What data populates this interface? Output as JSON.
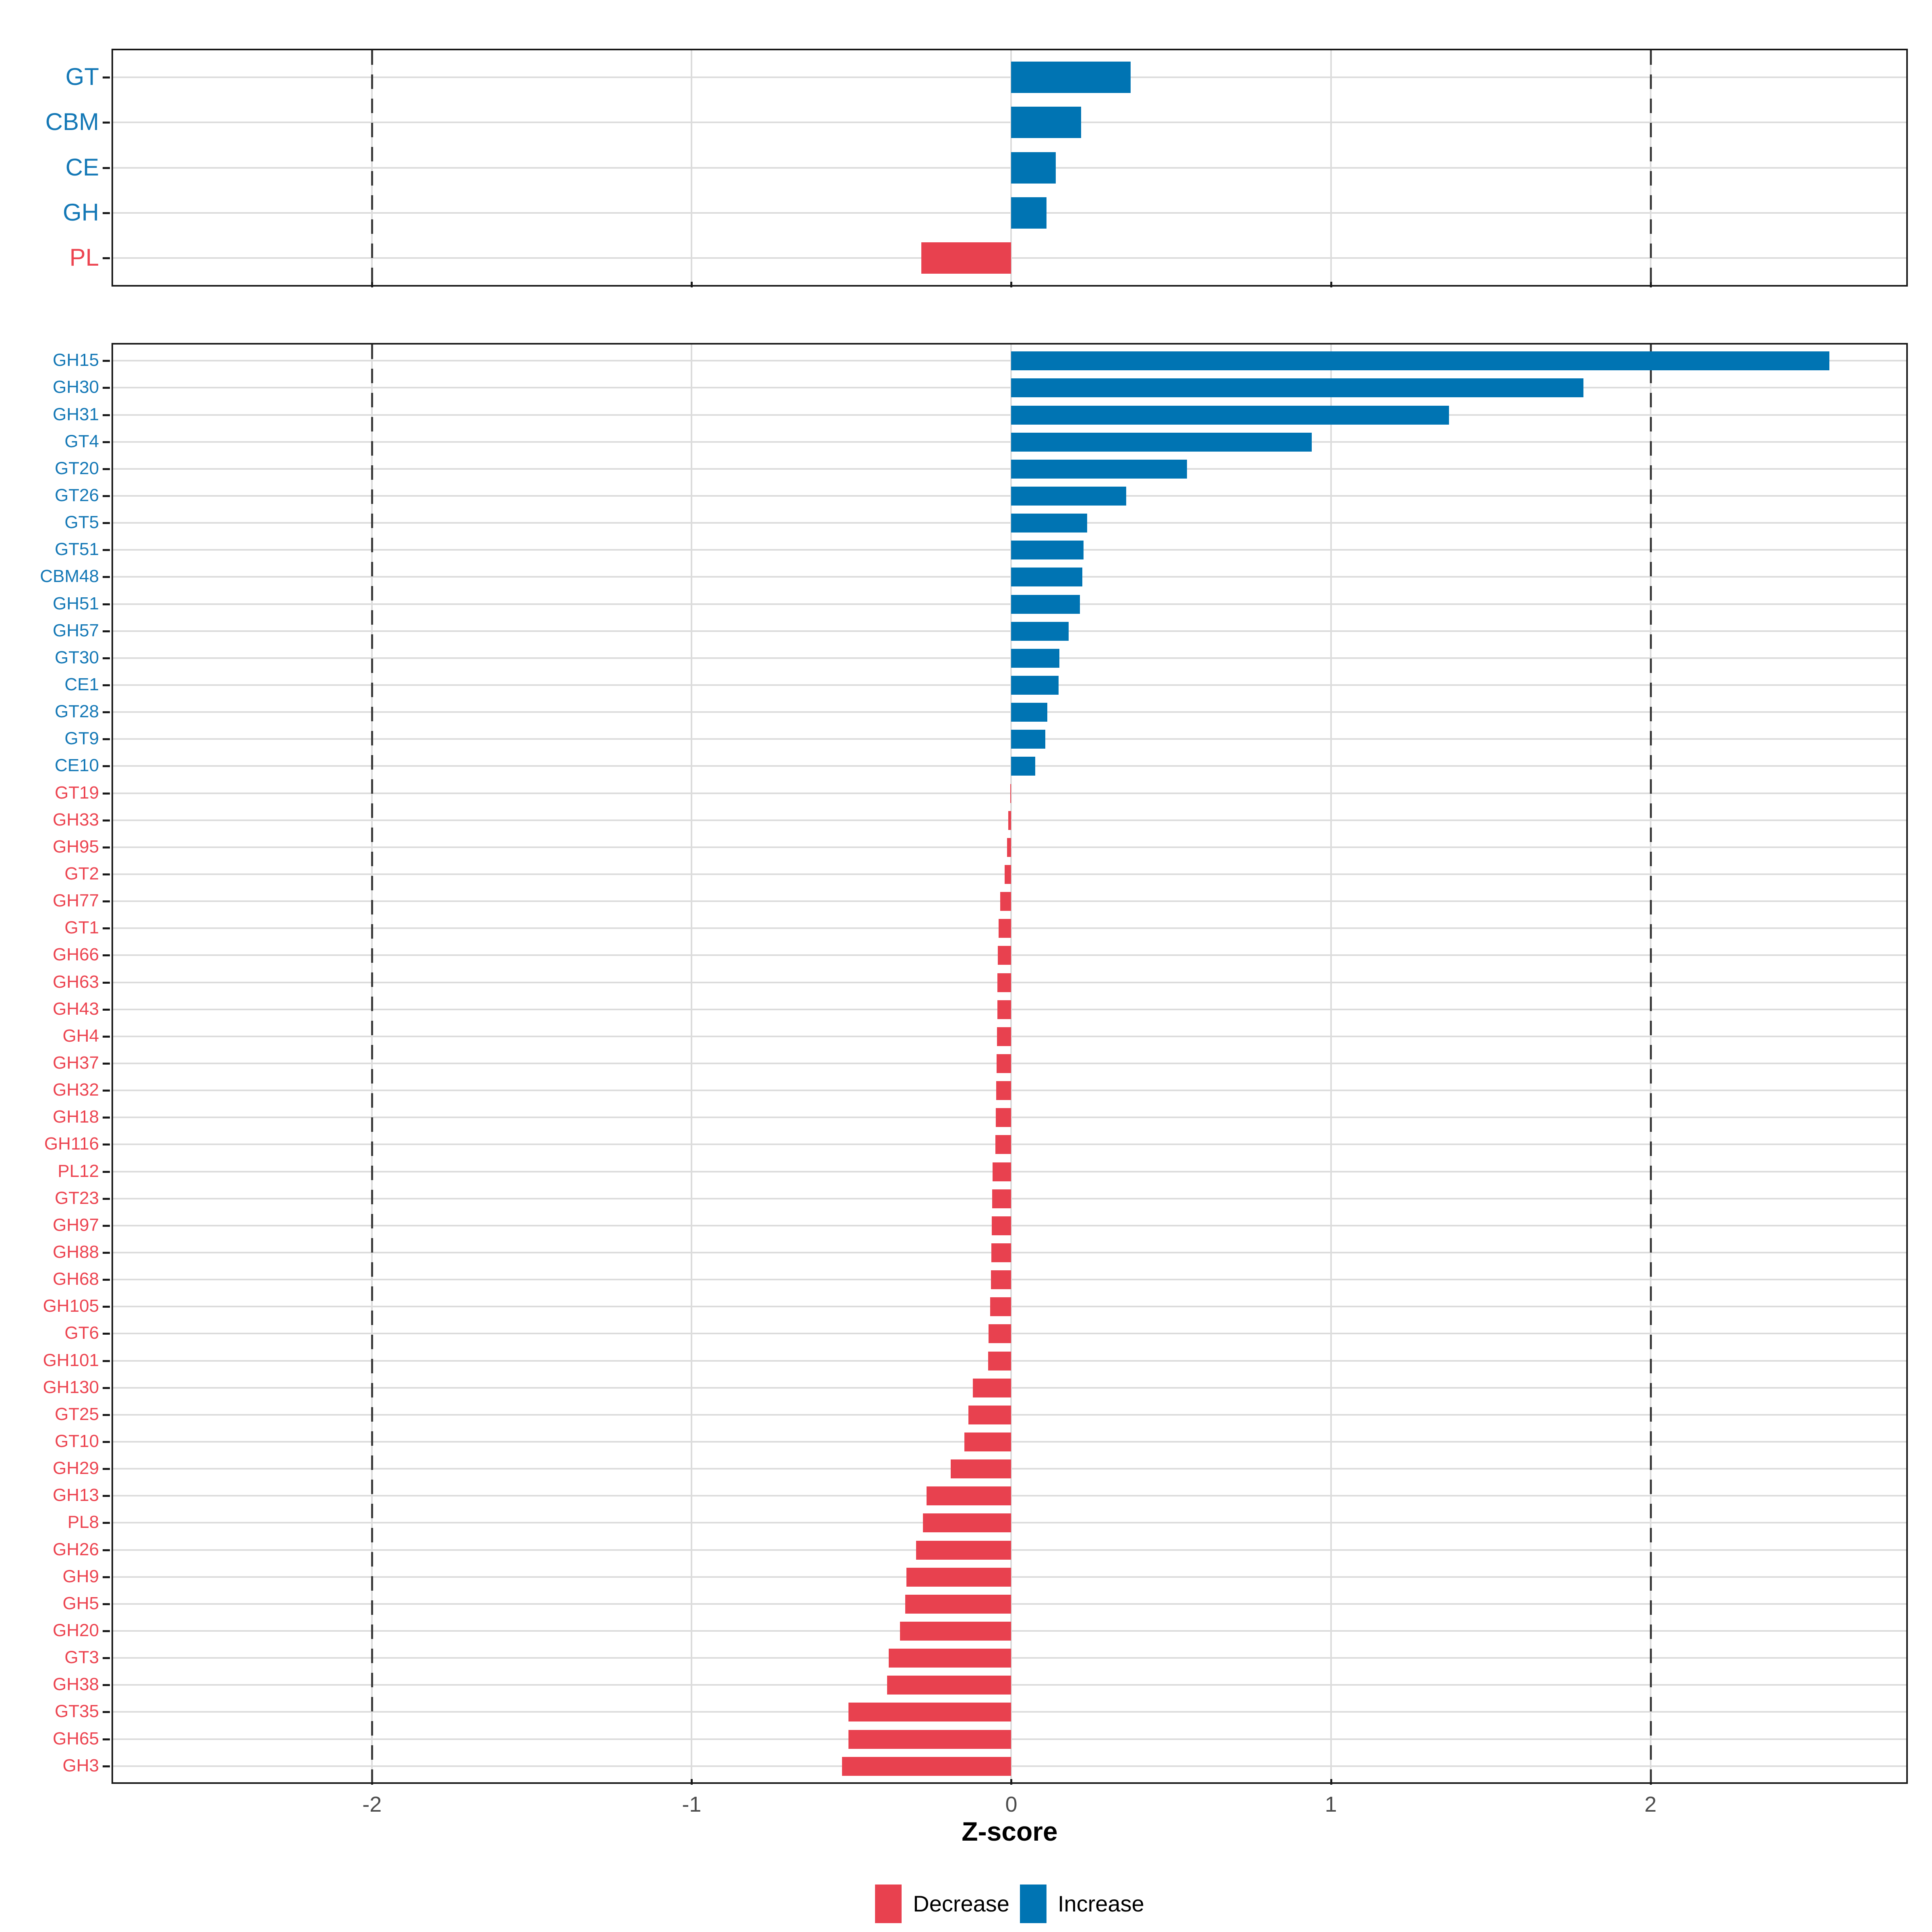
{
  "chart_data": {
    "type": "bar",
    "orientation": "horizontal",
    "title": "",
    "xlabel": "Z-score",
    "ylabel": "",
    "x_domain": [
      -2.81,
      2.8
    ],
    "x_ticks": [
      -2,
      -1,
      0,
      1,
      2
    ],
    "dashed_lines_at": [
      -2,
      2
    ],
    "grid": "on",
    "legend": {
      "position": "bottom",
      "entries": [
        {
          "label": "Decrease",
          "color": "#E8414F"
        },
        {
          "label": "Increase",
          "color": "#0074B3"
        }
      ]
    },
    "colors": {
      "increase_bar": "#0074B3",
      "decrease_bar": "#E8414F",
      "increase_label": "#1478B6",
      "decrease_label": "#EC4450",
      "axis_text": "#4D4D4D",
      "gridline": "#DCDCDC",
      "dashed_line": "#3A3A3A",
      "panel_border": "#1A1A1A"
    },
    "panels": [
      {
        "name": "families",
        "rows": [
          {
            "label": "GT",
            "value": 0.374
          },
          {
            "label": "CBM",
            "value": 0.219
          },
          {
            "label": "CE",
            "value": 0.139
          },
          {
            "label": "GH",
            "value": 0.11
          },
          {
            "label": "PL",
            "value": -0.281
          }
        ]
      },
      {
        "name": "subfamilies",
        "rows": [
          {
            "label": "GH15",
            "value": 2.56
          },
          {
            "label": "GH30",
            "value": 1.79
          },
          {
            "label": "GH31",
            "value": 1.37
          },
          {
            "label": "GT4",
            "value": 0.94
          },
          {
            "label": "GT20",
            "value": 0.55
          },
          {
            "label": "GT26",
            "value": 0.36
          },
          {
            "label": "GT5",
            "value": 0.237
          },
          {
            "label": "GT51",
            "value": 0.226
          },
          {
            "label": "CBM48",
            "value": 0.222
          },
          {
            "label": "GH51",
            "value": 0.215
          },
          {
            "label": "GH57",
            "value": 0.18
          },
          {
            "label": "GT30",
            "value": 0.151
          },
          {
            "label": "CE1",
            "value": 0.148
          },
          {
            "label": "GT28",
            "value": 0.113
          },
          {
            "label": "GT9",
            "value": 0.107
          },
          {
            "label": "CE10",
            "value": 0.075
          },
          {
            "label": "GT19",
            "value": -0.003
          },
          {
            "label": "GH33",
            "value": -0.009
          },
          {
            "label": "GH95",
            "value": -0.013
          },
          {
            "label": "GT2",
            "value": -0.021
          },
          {
            "label": "GH77",
            "value": -0.034
          },
          {
            "label": "GT1",
            "value": -0.04
          },
          {
            "label": "GH66",
            "value": -0.042
          },
          {
            "label": "GH63",
            "value": -0.043
          },
          {
            "label": "GH43",
            "value": -0.044
          },
          {
            "label": "GH4",
            "value": -0.045
          },
          {
            "label": "GH37",
            "value": -0.046
          },
          {
            "label": "GH32",
            "value": -0.047
          },
          {
            "label": "GH18",
            "value": -0.048
          },
          {
            "label": "GH116",
            "value": -0.05
          },
          {
            "label": "PL12",
            "value": -0.058
          },
          {
            "label": "GT23",
            "value": -0.06
          },
          {
            "label": "GH97",
            "value": -0.061
          },
          {
            "label": "GH88",
            "value": -0.062
          },
          {
            "label": "GH68",
            "value": -0.064
          },
          {
            "label": "GH105",
            "value": -0.066
          },
          {
            "label": "GT6",
            "value": -0.071
          },
          {
            "label": "GH101",
            "value": -0.073
          },
          {
            "label": "GH130",
            "value": -0.12
          },
          {
            "label": "GT25",
            "value": -0.134
          },
          {
            "label": "GT10",
            "value": -0.147
          },
          {
            "label": "GH29",
            "value": -0.19
          },
          {
            "label": "GH13",
            "value": -0.265
          },
          {
            "label": "PL8",
            "value": -0.276
          },
          {
            "label": "GH26",
            "value": -0.298
          },
          {
            "label": "GH9",
            "value": -0.328
          },
          {
            "label": "GH5",
            "value": -0.332
          },
          {
            "label": "GH20",
            "value": -0.348
          },
          {
            "label": "GT3",
            "value": -0.384
          },
          {
            "label": "GH38",
            "value": -0.389
          },
          {
            "label": "GT35",
            "value": -0.509
          },
          {
            "label": "GH65",
            "value": -0.509
          },
          {
            "label": "GH3",
            "value": -0.529
          }
        ]
      }
    ]
  },
  "axis": {
    "tick_labels": [
      "-2",
      "-1",
      "0",
      "1",
      "2"
    ]
  },
  "legend": {
    "decrease_label": "Decrease",
    "increase_label": "Increase"
  },
  "xlabel": "Z-score"
}
